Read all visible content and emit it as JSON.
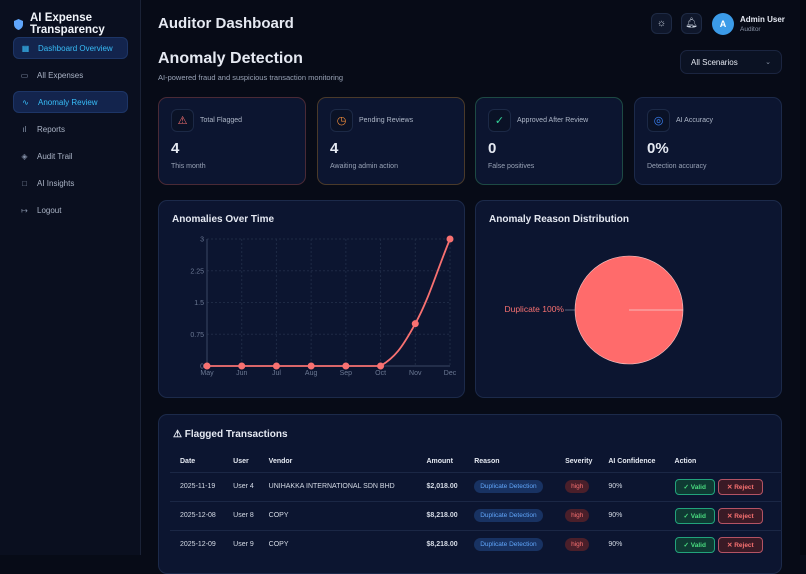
{
  "app": {
    "title": "AI Expense Transparency"
  },
  "sidebar": {
    "items": [
      {
        "label": "Dashboard Overview",
        "icon": "grid-icon",
        "active": true
      },
      {
        "label": "All Expenses",
        "icon": "archive-icon",
        "active": false
      },
      {
        "label": "Anomaly Review",
        "icon": "activity-icon",
        "active": true
      },
      {
        "label": "Reports",
        "icon": "bar-chart-icon",
        "active": false
      },
      {
        "label": "Audit Trail",
        "icon": "layers-icon",
        "active": false
      },
      {
        "label": "AI Insights",
        "icon": "book-icon",
        "active": false
      },
      {
        "label": "Logout",
        "icon": "logout-icon",
        "active": false
      }
    ]
  },
  "header": {
    "title": "Auditor Dashboard",
    "user_name": "Admin User",
    "user_role": "Auditor",
    "avatar_letter": "A"
  },
  "page": {
    "title": "Anomaly Detection",
    "subtitle": "AI-powered fraud and suspicious transaction monitoring",
    "scenario_select": "All Scenarios"
  },
  "stats": [
    {
      "label": "Total Flagged",
      "value": "4",
      "note": "This month",
      "color": "#f87171",
      "icon": "alert-triangle-icon"
    },
    {
      "label": "Pending Reviews",
      "value": "4",
      "note": "Awaiting admin action",
      "color": "#fb923c",
      "icon": "clock-icon"
    },
    {
      "label": "Approved After Review",
      "value": "0",
      "note": "False positives",
      "color": "#34d399",
      "icon": "check-circle-icon"
    },
    {
      "label": "AI Accuracy",
      "value": "0%",
      "note": "Detection accuracy",
      "color": "#3b82f6",
      "icon": "target-icon"
    }
  ],
  "chart_data": [
    {
      "type": "line",
      "title": "Anomalies Over Time",
      "categories": [
        "May",
        "Jun",
        "Jul",
        "Aug",
        "Sep",
        "Oct",
        "Nov",
        "Dec"
      ],
      "values": [
        0,
        0,
        0,
        0,
        0,
        0,
        1,
        3
      ],
      "ylim": [
        0,
        3
      ],
      "yticks": [
        "0",
        "0.75",
        "1.5",
        "2.25",
        "3"
      ],
      "grid": true,
      "color": "#f87171"
    },
    {
      "type": "pie",
      "title": "Anomaly Reason Distribution",
      "labels": [
        "Duplicate"
      ],
      "values": [
        100
      ],
      "slice_labels": [
        "Duplicate 100%"
      ],
      "color": "#ff6b6b"
    }
  ],
  "table": {
    "title": "Flagged Transactions",
    "columns": [
      "Date",
      "User",
      "Vendor",
      "Amount",
      "Reason",
      "Severity",
      "AI Confidence",
      "Action"
    ],
    "rows": [
      {
        "date": "2025-11-19",
        "user": "User 4",
        "vendor": "UNIHAKKA INTERNATIONAL SDN BHD",
        "amount": "$2,018.00",
        "reason": "Duplicate Detection",
        "severity": "high",
        "confidence": "90%",
        "valid": "✓ Valid",
        "reject": "✕ Reject"
      },
      {
        "date": "2025-12-08",
        "user": "User 8",
        "vendor": "COPY",
        "amount": "$8,218.00",
        "reason": "Duplicate Detection",
        "severity": "high",
        "confidence": "90%",
        "valid": "✓ Valid",
        "reject": "✕ Reject"
      },
      {
        "date": "2025-12-09",
        "user": "User 9",
        "vendor": "COPY",
        "amount": "$8,218.00",
        "reason": "Duplicate Detection",
        "severity": "high",
        "confidence": "90%",
        "valid": "✓ Valid",
        "reject": "✕ Reject"
      }
    ]
  }
}
